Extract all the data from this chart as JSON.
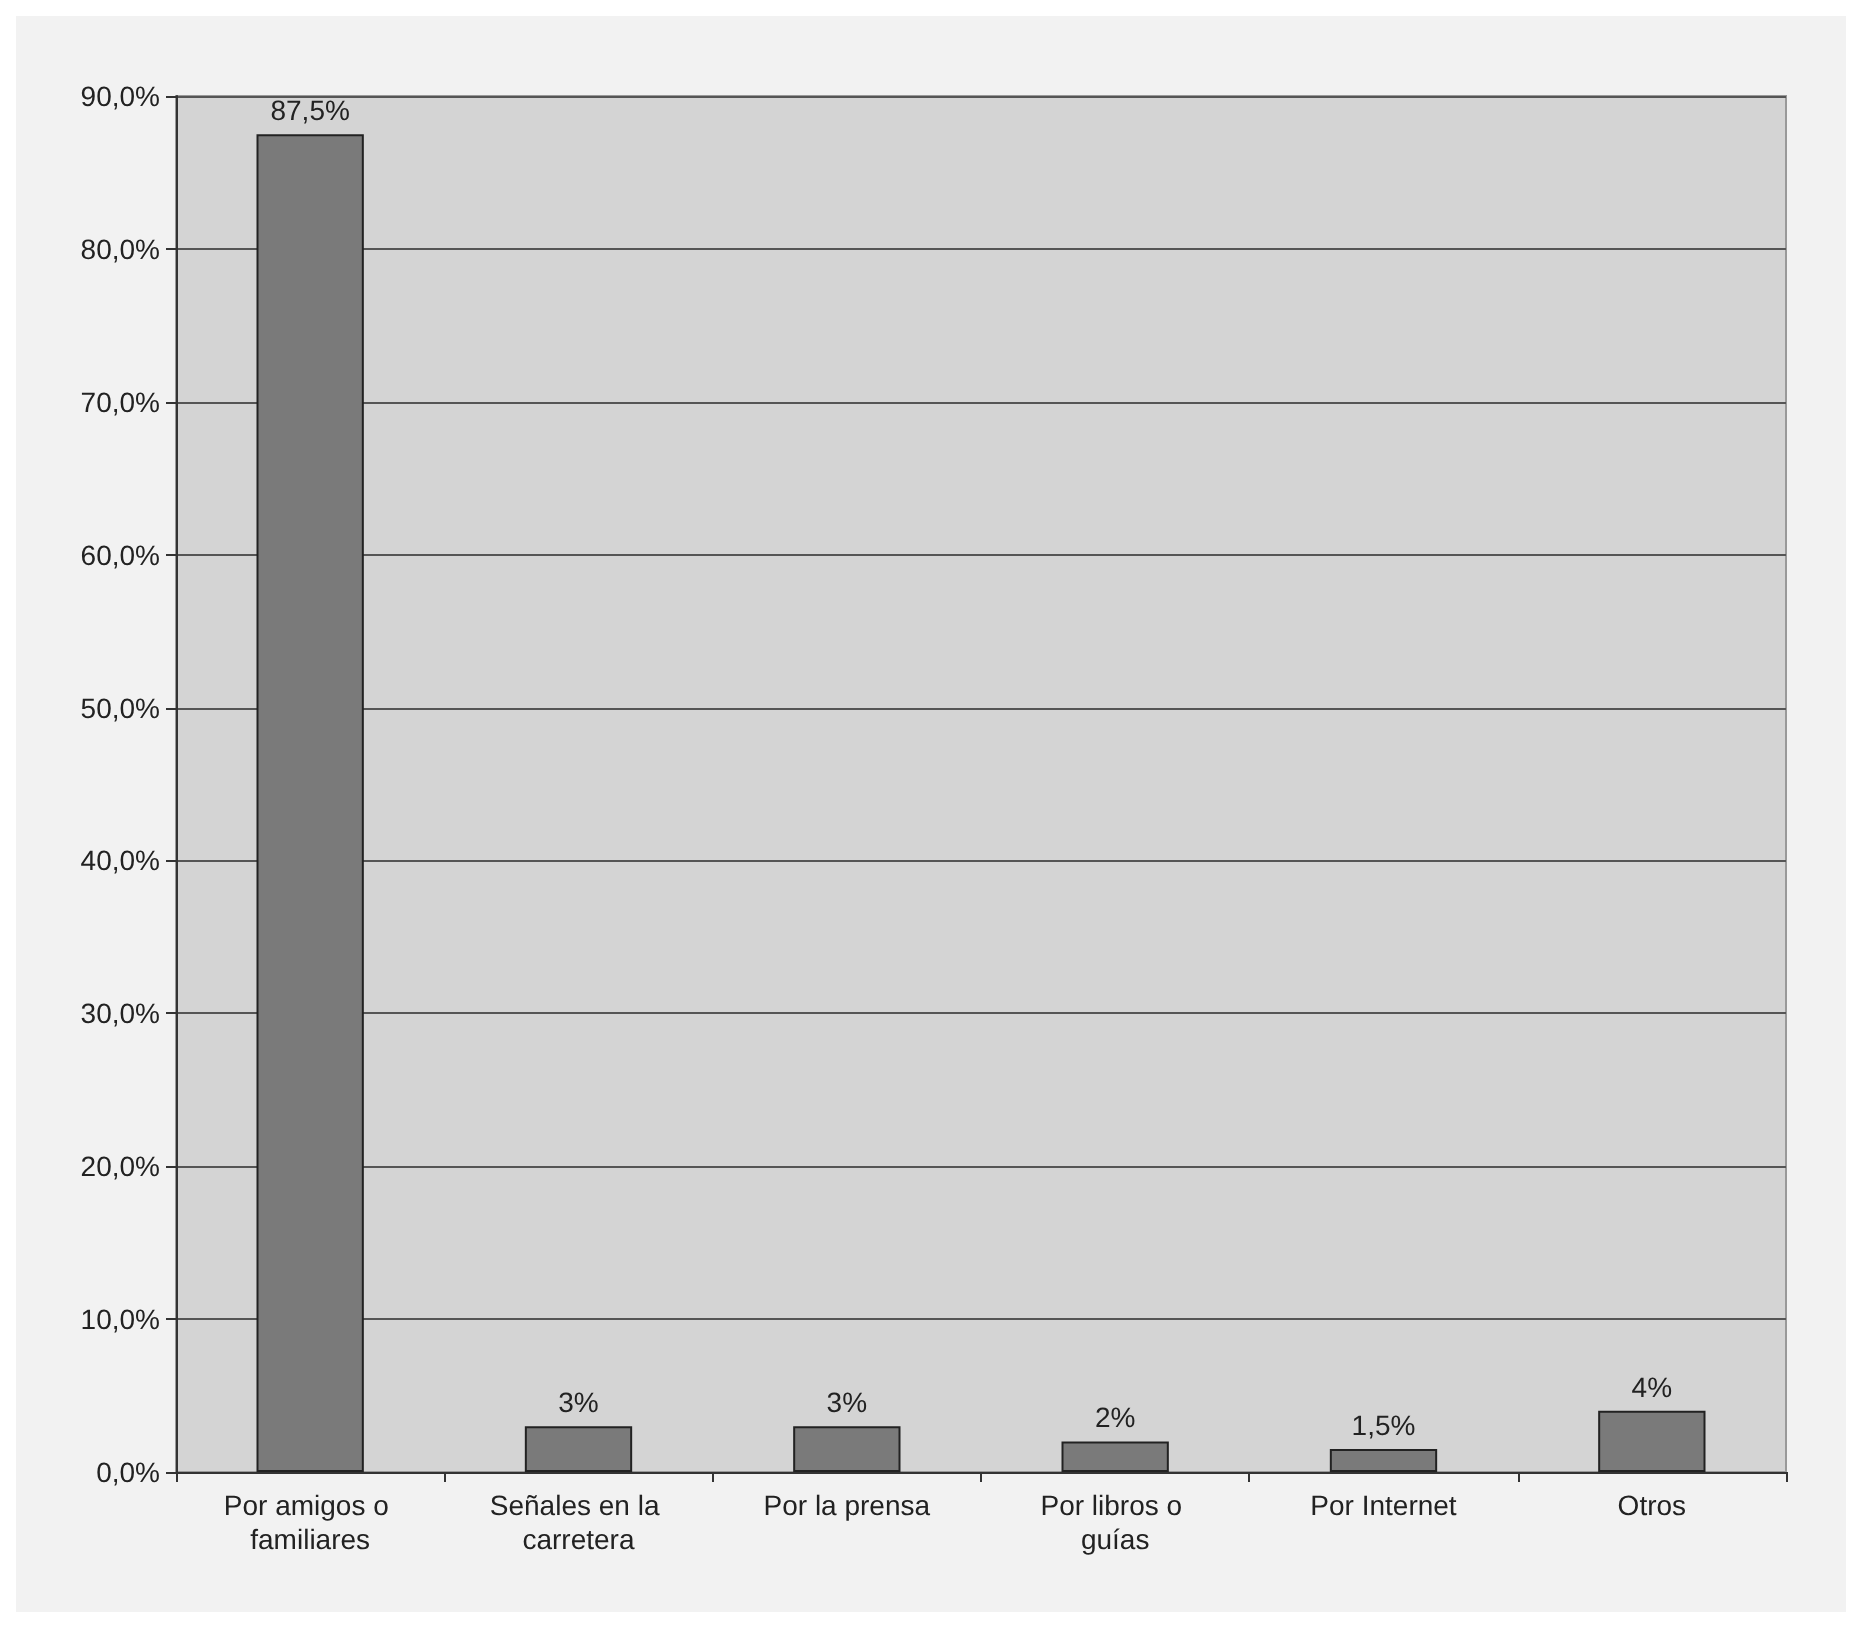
{
  "chart_data": {
    "type": "bar",
    "categories": [
      "Por amigos o familiares",
      "Señales en la carretera",
      "Por la prensa",
      "Por libros o guías",
      "Por Internet",
      "Otros"
    ],
    "values": [
      87.5,
      3,
      3,
      2,
      1.5,
      4
    ],
    "value_labels": [
      "87,5%",
      "3%",
      "3%",
      "2%",
      "1,5%",
      "4%"
    ],
    "color": "#7a7a7a",
    "ylim": [
      0,
      90
    ],
    "yticks": [
      {
        "value": 0,
        "label": "0,0%"
      },
      {
        "value": 10,
        "label": "10,0%"
      },
      {
        "value": 20,
        "label": "20,0%"
      },
      {
        "value": 30,
        "label": "30,0%"
      },
      {
        "value": 40,
        "label": "40,0%"
      },
      {
        "value": 50,
        "label": "50,0%"
      },
      {
        "value": 60,
        "label": "60,0%"
      },
      {
        "value": 70,
        "label": "70,0%"
      },
      {
        "value": 80,
        "label": "80,0%"
      },
      {
        "value": 90,
        "label": "90,0%"
      }
    ],
    "grid": "y"
  }
}
